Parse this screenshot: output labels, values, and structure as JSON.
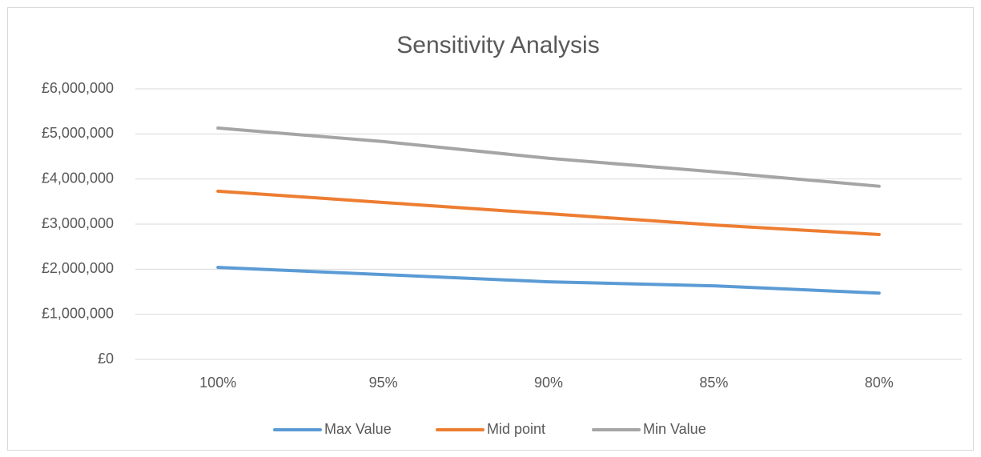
{
  "chart_data": {
    "type": "line",
    "title": "Sensitivity Analysis",
    "categories": [
      "100%",
      "95%",
      "90%",
      "85%",
      "80%"
    ],
    "series": [
      {
        "name": "Max Value",
        "color": "#5b9bd5",
        "values": [
          2040000,
          1880000,
          1720000,
          1630000,
          1470000
        ]
      },
      {
        "name": "Mid point",
        "color": "#ed7d31",
        "values": [
          3730000,
          3480000,
          3230000,
          2980000,
          2770000
        ]
      },
      {
        "name": "Min Value",
        "color": "#a5a5a5",
        "values": [
          5130000,
          4830000,
          4460000,
          4160000,
          3840000
        ]
      }
    ],
    "ylim": [
      0,
      6000000
    ],
    "yticks": [
      {
        "value": 0,
        "label": "£0"
      },
      {
        "value": 1000000,
        "label": "£1,000,000"
      },
      {
        "value": 2000000,
        "label": "£2,000,000"
      },
      {
        "value": 3000000,
        "label": "£3,000,000"
      },
      {
        "value": 4000000,
        "label": "£4,000,000"
      },
      {
        "value": 5000000,
        "label": "£5,000,000"
      },
      {
        "value": 6000000,
        "label": "£6,000,000"
      }
    ],
    "grid": true,
    "legend": "bottom"
  }
}
